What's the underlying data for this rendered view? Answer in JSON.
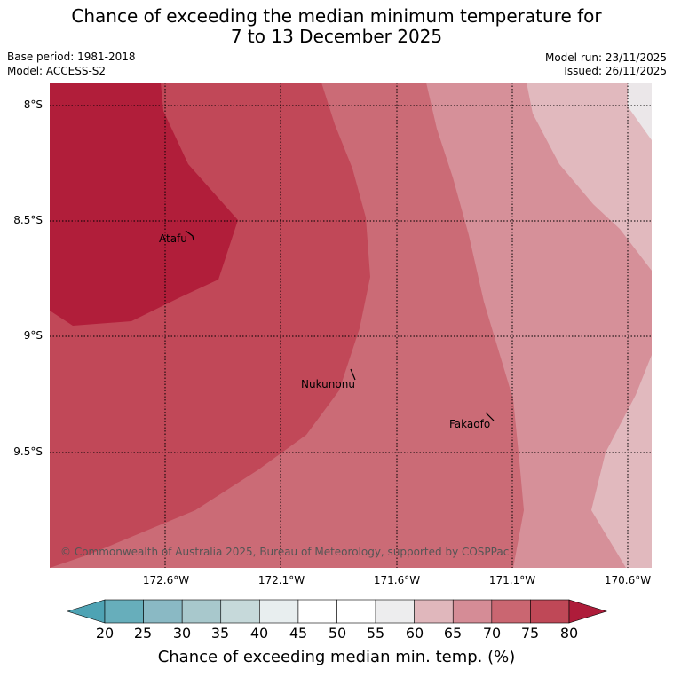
{
  "title_line1": "Chance of exceeding the median minimum temperature for",
  "title_line2": "7 to 13 December 2025",
  "base_period": "Base period: 1981-2018",
  "model": "Model: ACCESS-S2",
  "model_run": "Model run: 23/11/2025",
  "issued": "Issued: 26/11/2025",
  "latitude_labels": [
    "8°S",
    "8.5°S",
    "9°S",
    "9.5°S"
  ],
  "longitude_labels": [
    "172.6°W",
    "172.1°W",
    "171.6°W",
    "171.1°W",
    "170.6°W"
  ],
  "places": [
    {
      "name": "Atafu"
    },
    {
      "name": "Nukunonu"
    },
    {
      "name": "Fakaofo"
    }
  ],
  "copyright": "© Commonwealth of Australia 2025, Bureau of Meteorology, supported by COSPPac",
  "colorbar": {
    "ticks": [
      "20",
      "25",
      "30",
      "35",
      "40",
      "45",
      "50",
      "55",
      "60",
      "65",
      "70",
      "75",
      "80"
    ],
    "label": "Chance of exceeding median min. temp. (%)",
    "colors": [
      "#67aebb",
      "#8ab9c4",
      "#a8c8cc",
      "#c6d9da",
      "#e8eeef",
      "#ffffff",
      "#ffffff",
      "#ededee",
      "#e0b7bc",
      "#d58c96",
      "#ca6671",
      "#bf4857"
    ],
    "under_color": "#4ea3b4",
    "over_color": "#ae1c3a"
  },
  "map_zone_colors": {
    "above_80": "#b11e3a",
    "75_80": "#c14858",
    "70_75": "#cb6b76",
    "65_70": "#d69099",
    "60_65": "#e1b9be",
    "55_60": "#ebe7e9"
  }
}
